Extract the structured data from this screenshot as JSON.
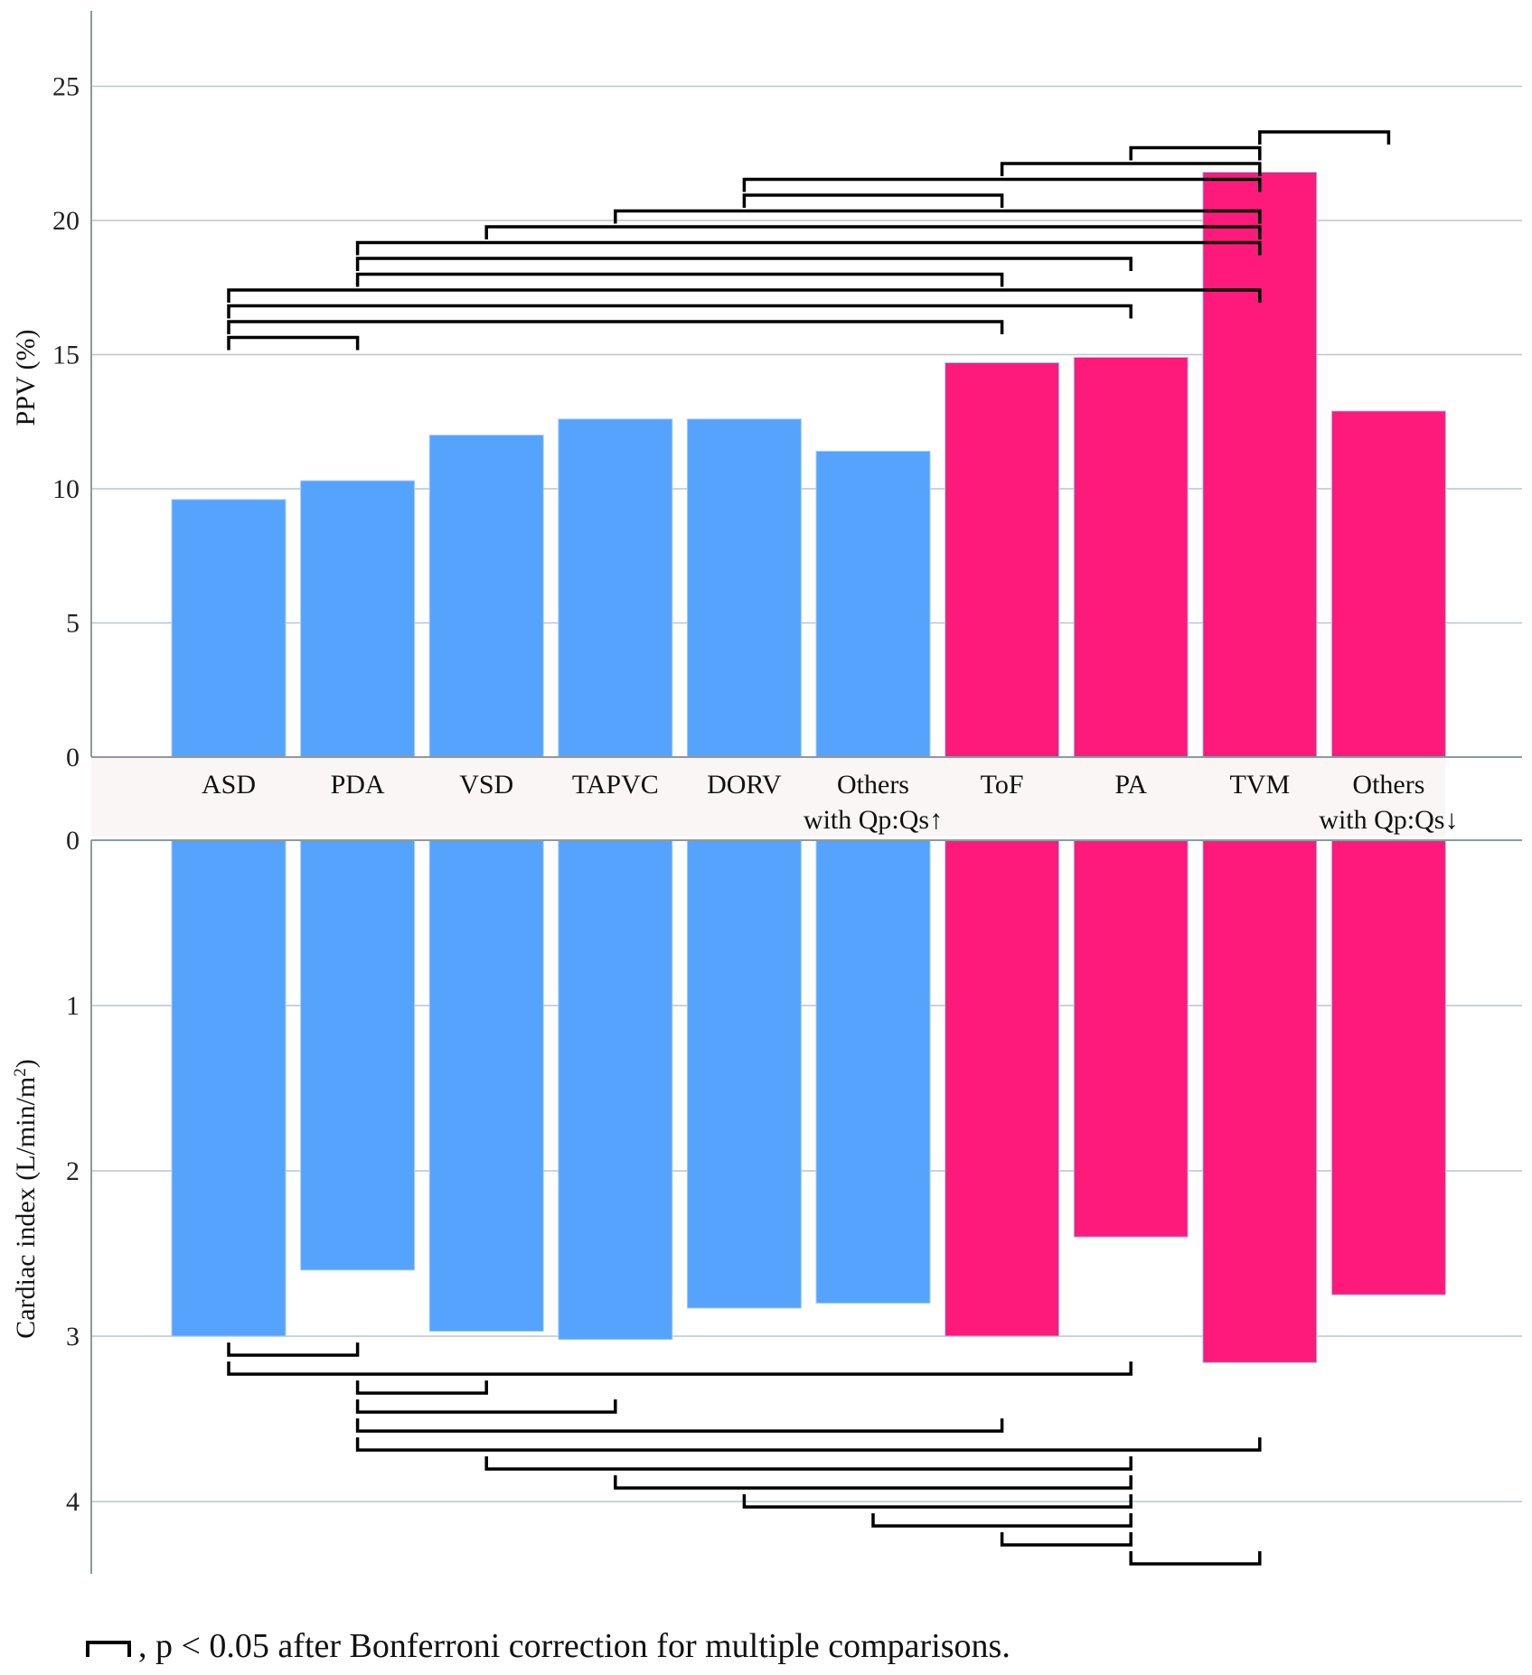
{
  "chart_data": {
    "type": "bar",
    "categories": [
      "ASD",
      "PDA",
      "VSD",
      "TAPVC",
      "DORV",
      "Others with Qp:Qs↑",
      "ToF",
      "PA",
      "TVM",
      "Others with Qp:Qs↓"
    ],
    "category_lines": [
      [
        "ASD"
      ],
      [
        "PDA"
      ],
      [
        "VSD"
      ],
      [
        "TAPVC"
      ],
      [
        "DORV"
      ],
      [
        "Others",
        "with Qp:Qs↑"
      ],
      [
        "ToF"
      ],
      [
        "PA"
      ],
      [
        "TVM"
      ],
      [
        "Others",
        "with Qp:Qs↓"
      ]
    ],
    "group_colors": [
      "#55a3fd",
      "#55a3fd",
      "#55a3fd",
      "#55a3fd",
      "#55a3fd",
      "#55a3fd",
      "#fe1a7a",
      "#fe1a7a",
      "#fe1a7a",
      "#fe1a7a"
    ],
    "top_panel": {
      "ylabel": "PPV (%)",
      "ylim": [
        0,
        27
      ],
      "yticks": [
        0,
        5,
        10,
        15,
        20,
        25
      ],
      "values": [
        9.6,
        10.3,
        12.0,
        12.6,
        12.6,
        11.4,
        14.7,
        14.9,
        21.8,
        12.9
      ],
      "significant_pairs": [
        [
          "TVM",
          "Others with Qp:Qs↓"
        ],
        [
          "PA",
          "TVM"
        ],
        [
          "ToF",
          "TVM"
        ],
        [
          "DORV",
          "TVM"
        ],
        [
          "DORV",
          "ToF"
        ],
        [
          "TAPVC",
          "TVM"
        ],
        [
          "VSD",
          "TVM"
        ],
        [
          "PDA",
          "TVM"
        ],
        [
          "PDA",
          "PA"
        ],
        [
          "PDA",
          "ToF"
        ],
        [
          "ASD",
          "TVM"
        ],
        [
          "ASD",
          "PA"
        ],
        [
          "ASD",
          "ToF"
        ],
        [
          "ASD",
          "PDA"
        ]
      ]
    },
    "bottom_panel": {
      "ylabel": "Cardiac index (L/min/m",
      "ylabel_sup": "2",
      "ylabel_close": ")",
      "ylim": [
        0,
        4.4
      ],
      "yticks": [
        0,
        1,
        2,
        3,
        4
      ],
      "values": [
        3.0,
        2.6,
        2.97,
        3.02,
        2.83,
        2.8,
        3.0,
        2.4,
        3.16,
        2.75
      ],
      "significant_pairs": [
        [
          "ASD",
          "PDA"
        ],
        [
          "ASD",
          "PA"
        ],
        [
          "PDA",
          "VSD"
        ],
        [
          "PDA",
          "TAPVC"
        ],
        [
          "PDA",
          "ToF"
        ],
        [
          "PDA",
          "TVM"
        ],
        [
          "VSD",
          "PA"
        ],
        [
          "TAPVC",
          "PA"
        ],
        [
          "DORV",
          "PA"
        ],
        [
          "Others with Qp:Qs↑",
          "PA"
        ],
        [
          "ToF",
          "PA"
        ],
        [
          "PA",
          "TVM"
        ]
      ]
    },
    "footnote": ", p < 0.05 after Bonferroni correction for multiple comparisons."
  }
}
